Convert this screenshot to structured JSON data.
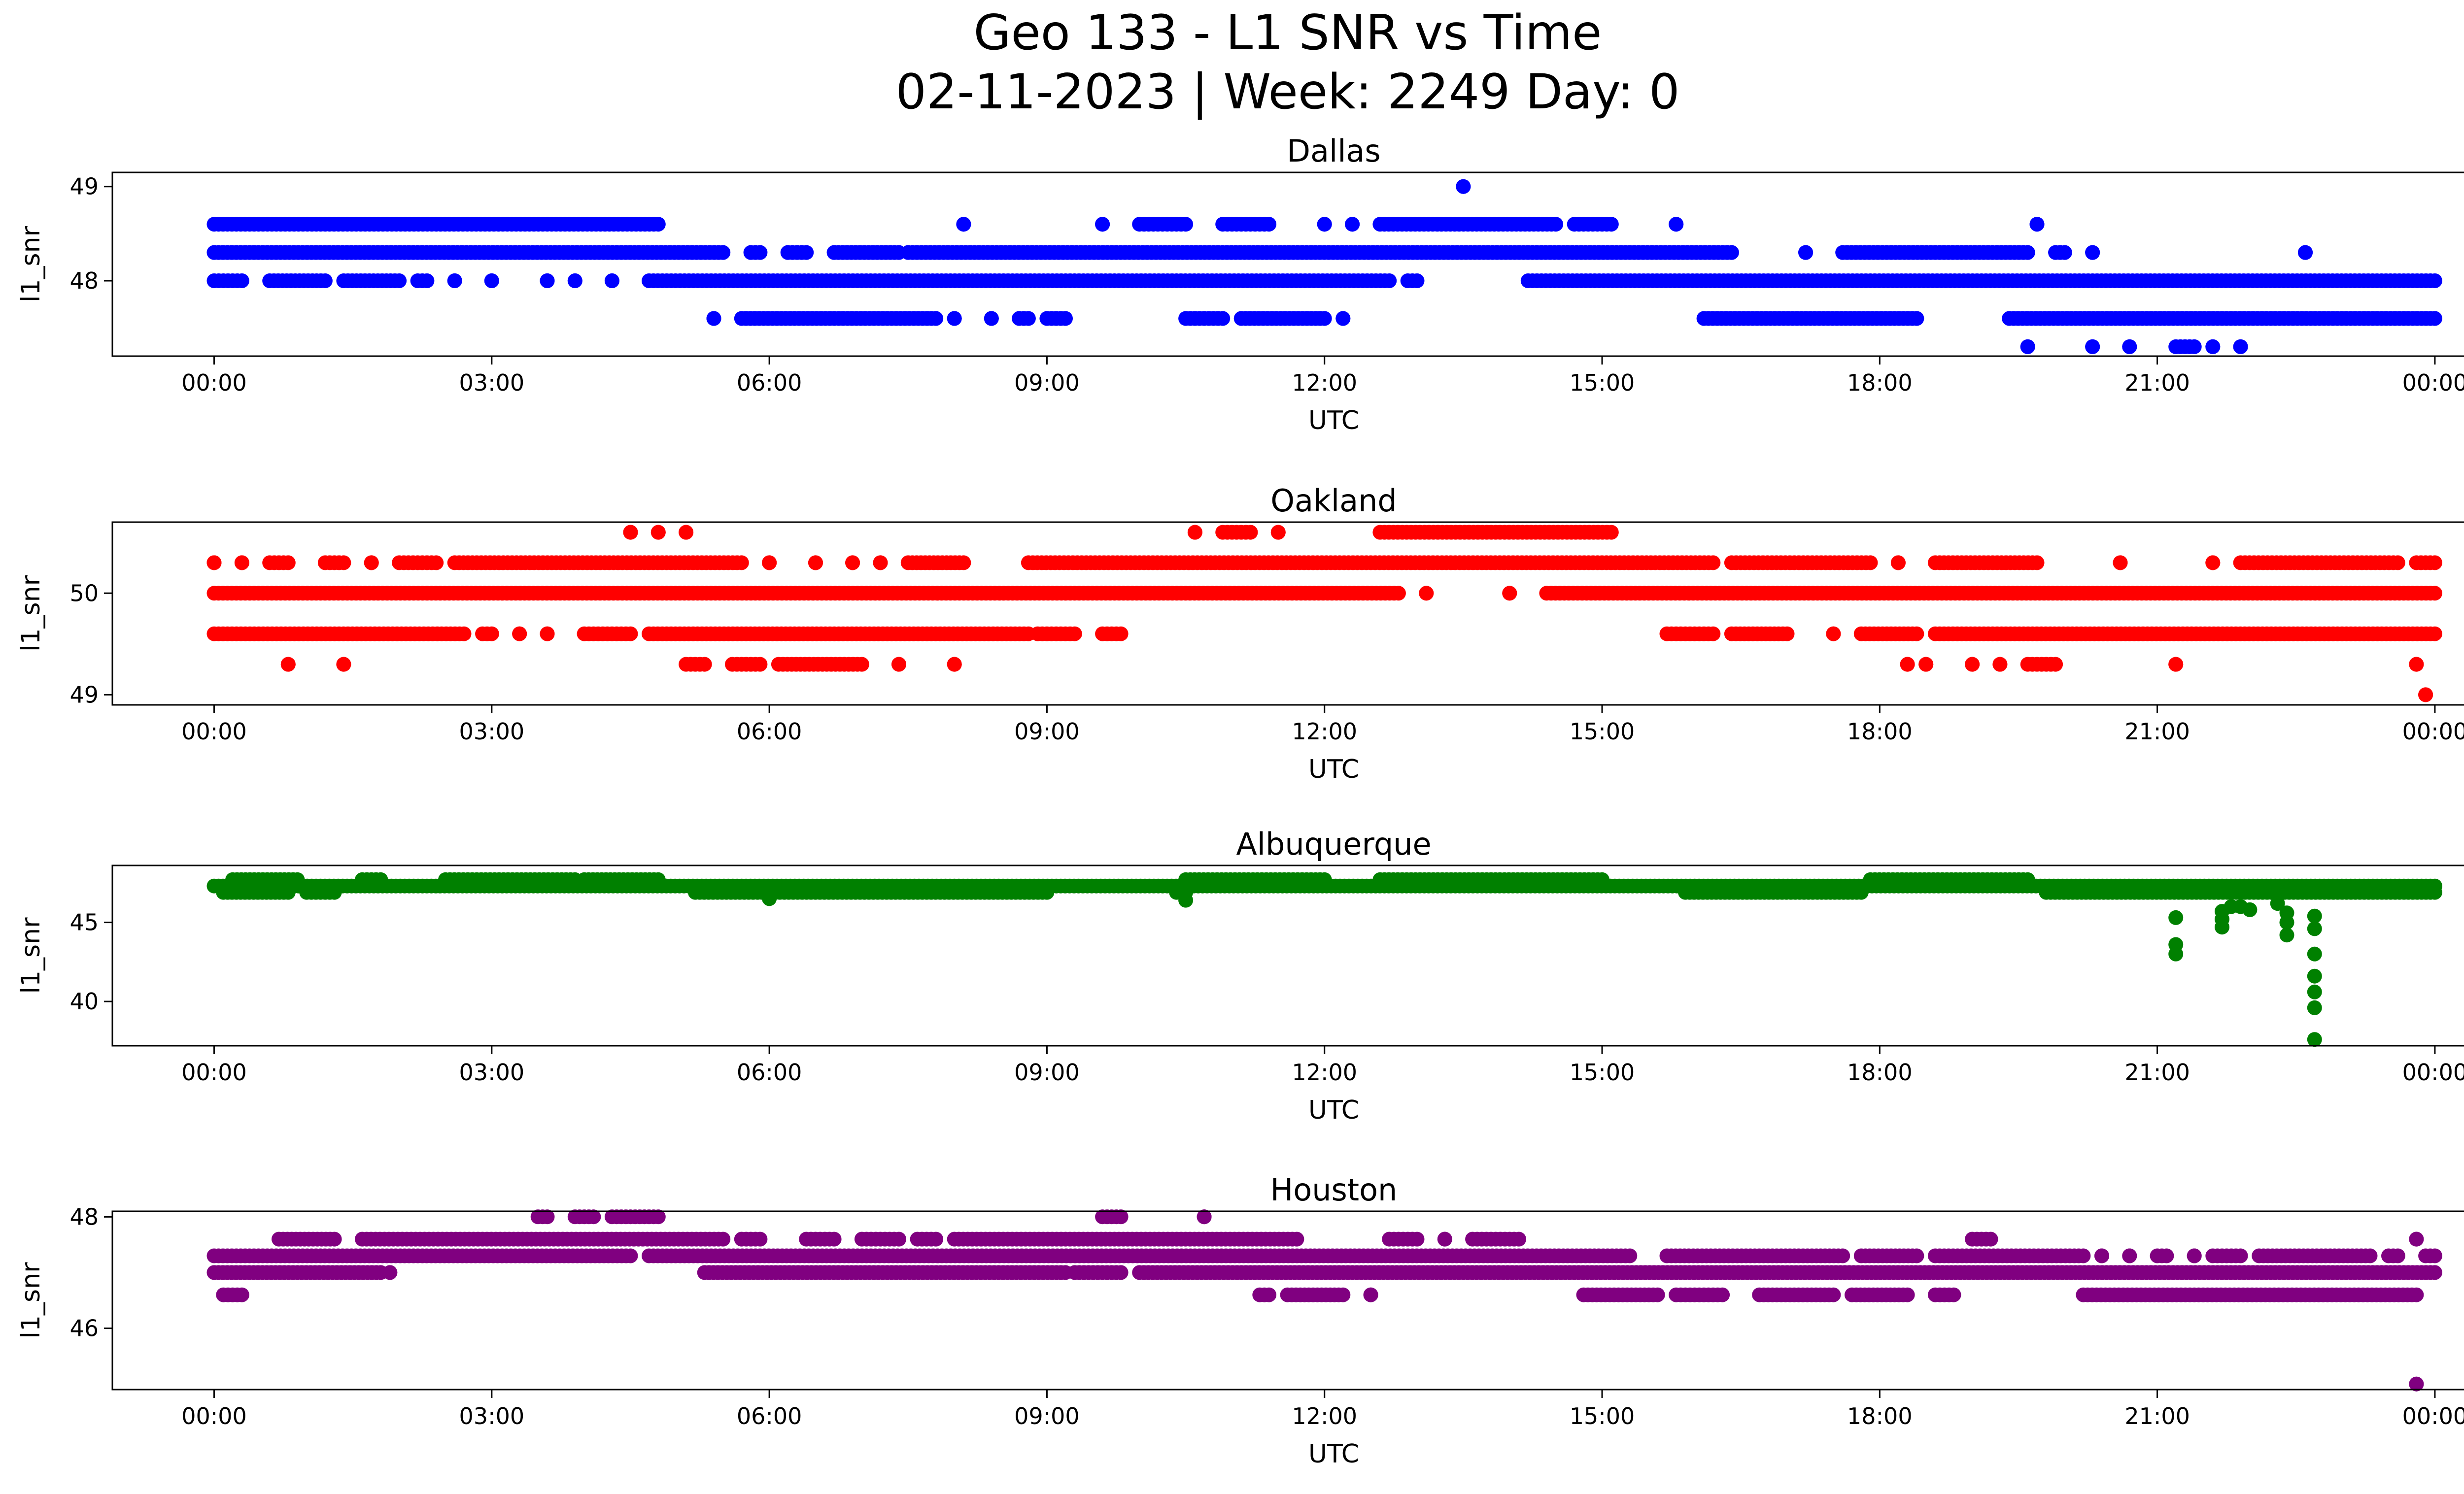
{
  "figure": {
    "title_line1": "Geo 133 - L1 SNR vs Time",
    "title_line2": "02-11-2023 | Week: 2249 Day: 0"
  },
  "chart_data": [
    {
      "type": "scatter",
      "title": "Dallas",
      "xlabel": "UTC",
      "ylabel": "l1_snr",
      "color": "#0000ff",
      "x_ticks": [
        "00:00",
        "03:00",
        "06:00",
        "09:00",
        "12:00",
        "15:00",
        "18:00",
        "21:00",
        "00:00"
      ],
      "x_range_hours": [
        -1.1,
        25.3
      ],
      "ylim": [
        47.2,
        49.15
      ],
      "y_ticks": [
        48,
        49
      ],
      "bands": [
        {
          "y": 48.6,
          "segments": [
            [
              0.0,
              4.8
            ],
            [
              8.1,
              8.1
            ],
            [
              9.6,
              9.6
            ],
            [
              10.0,
              10.5
            ],
            [
              10.9,
              11.4
            ],
            [
              12.0,
              12.0
            ],
            [
              12.3,
              12.3
            ],
            [
              12.6,
              14.5
            ],
            [
              14.7,
              15.1
            ],
            [
              15.8,
              15.8
            ],
            [
              19.7,
              19.7
            ]
          ]
        },
        {
          "y": 48.3,
          "segments": [
            [
              0.0,
              5.5
            ],
            [
              5.8,
              5.9
            ],
            [
              6.2,
              6.4
            ],
            [
              6.7,
              7.4
            ],
            [
              7.5,
              16.4
            ],
            [
              17.2,
              17.2
            ],
            [
              17.6,
              19.6
            ],
            [
              19.9,
              20.0
            ],
            [
              20.3,
              20.3
            ],
            [
              22.6,
              22.6
            ]
          ]
        },
        {
          "y": 48.0,
          "segments": [
            [
              0.0,
              0.3
            ],
            [
              0.6,
              1.2
            ],
            [
              1.4,
              2.0
            ],
            [
              2.2,
              2.3
            ],
            [
              2.6,
              2.6
            ],
            [
              3.0,
              3.0
            ],
            [
              3.6,
              3.6
            ],
            [
              3.9,
              3.9
            ],
            [
              4.3,
              4.3
            ],
            [
              4.7,
              12.7
            ],
            [
              12.9,
              13.0
            ],
            [
              14.2,
              24.0
            ]
          ]
        },
        {
          "y": 47.6,
          "segments": [
            [
              5.4,
              5.4
            ],
            [
              5.7,
              7.8
            ],
            [
              8.0,
              8.0
            ],
            [
              8.4,
              8.4
            ],
            [
              8.7,
              8.8
            ],
            [
              9.0,
              9.2
            ],
            [
              10.5,
              10.9
            ],
            [
              11.1,
              12.0
            ],
            [
              12.2,
              12.2
            ],
            [
              16.1,
              18.4
            ],
            [
              19.4,
              24.0
            ]
          ]
        },
        {
          "y": 47.3,
          "segments": [
            [
              19.6,
              19.6
            ],
            [
              20.3,
              20.3
            ],
            [
              20.7,
              20.7
            ],
            [
              21.2,
              21.4
            ],
            [
              21.6,
              21.6
            ],
            [
              21.9,
              21.9
            ]
          ]
        },
        {
          "y": 49.0,
          "segments": [
            [
              13.5,
              13.5
            ]
          ]
        }
      ]
    },
    {
      "type": "scatter",
      "title": "Oakland",
      "xlabel": "UTC",
      "ylabel": "l1_snr",
      "color": "#ff0000",
      "x_ticks": [
        "00:00",
        "03:00",
        "06:00",
        "09:00",
        "12:00",
        "15:00",
        "18:00",
        "21:00",
        "00:00"
      ],
      "x_range_hours": [
        -1.1,
        25.3
      ],
      "ylim": [
        48.9,
        50.7
      ],
      "y_ticks": [
        49,
        50
      ],
      "bands": [
        {
          "y": 50.6,
          "segments": [
            [
              4.5,
              4.5
            ],
            [
              4.8,
              4.8
            ],
            [
              5.1,
              5.1
            ],
            [
              10.6,
              10.6
            ],
            [
              10.9,
              11.2
            ],
            [
              11.5,
              11.5
            ],
            [
              12.6,
              15.1
            ]
          ]
        },
        {
          "y": 50.3,
          "segments": [
            [
              0.0,
              0.0
            ],
            [
              0.3,
              0.3
            ],
            [
              0.6,
              0.8
            ],
            [
              1.2,
              1.4
            ],
            [
              1.7,
              1.7
            ],
            [
              2.0,
              2.4
            ],
            [
              2.6,
              5.7
            ],
            [
              6.0,
              6.0
            ],
            [
              6.5,
              6.5
            ],
            [
              6.9,
              6.9
            ],
            [
              7.2,
              7.2
            ],
            [
              7.5,
              8.1
            ],
            [
              8.8,
              16.2
            ],
            [
              16.4,
              17.9
            ],
            [
              18.2,
              18.2
            ],
            [
              18.6,
              19.7
            ],
            [
              20.6,
              20.6
            ],
            [
              21.6,
              21.6
            ],
            [
              21.9,
              23.6
            ],
            [
              23.8,
              24.0
            ]
          ]
        },
        {
          "y": 50.0,
          "segments": [
            [
              0.0,
              12.8
            ],
            [
              13.1,
              13.1
            ],
            [
              14.0,
              14.0
            ],
            [
              14.4,
              24.0
            ]
          ]
        },
        {
          "y": 49.6,
          "segments": [
            [
              0.0,
              2.7
            ],
            [
              2.9,
              3.0
            ],
            [
              3.3,
              3.3
            ],
            [
              3.6,
              3.6
            ],
            [
              4.0,
              4.5
            ],
            [
              4.7,
              8.8
            ],
            [
              8.9,
              9.3
            ],
            [
              9.6,
              9.8
            ],
            [
              15.7,
              16.2
            ],
            [
              16.4,
              17.0
            ],
            [
              17.5,
              17.5
            ],
            [
              17.8,
              18.4
            ],
            [
              18.6,
              24.0
            ]
          ]
        },
        {
          "y": 49.3,
          "segments": [
            [
              0.8,
              0.8
            ],
            [
              1.4,
              1.4
            ],
            [
              5.1,
              5.3
            ],
            [
              5.6,
              5.9
            ],
            [
              6.1,
              7.0
            ],
            [
              7.4,
              7.4
            ],
            [
              8.0,
              8.0
            ],
            [
              18.3,
              18.3
            ],
            [
              18.5,
              18.5
            ],
            [
              19.0,
              19.0
            ],
            [
              19.3,
              19.3
            ],
            [
              19.6,
              19.9
            ],
            [
              21.2,
              21.2
            ],
            [
              23.8,
              23.8
            ]
          ]
        },
        {
          "y": 49.0,
          "segments": [
            [
              23.9,
              23.9
            ]
          ]
        }
      ]
    },
    {
      "type": "scatter",
      "title": "Albuquerque",
      "xlabel": "UTC",
      "ylabel": "l1_snr",
      "color": "#008000",
      "x_ticks": [
        "00:00",
        "03:00",
        "06:00",
        "09:00",
        "12:00",
        "15:00",
        "18:00",
        "21:00",
        "00:00"
      ],
      "x_range_hours": [
        -1.1,
        25.3
      ],
      "ylim": [
        37.2,
        48.6
      ],
      "y_ticks": [
        40,
        45
      ],
      "bands": [
        {
          "y": 47.3,
          "segments": [
            [
              0.0,
              24.0
            ]
          ]
        },
        {
          "y": 47.7,
          "segments": [
            [
              0.2,
              0.9
            ],
            [
              1.6,
              1.8
            ],
            [
              2.5,
              3.9
            ],
            [
              4.0,
              4.8
            ],
            [
              10.5,
              12.0
            ],
            [
              12.6,
              15.0
            ],
            [
              17.9,
              19.6
            ]
          ]
        },
        {
          "y": 46.9,
          "segments": [
            [
              0.1,
              0.8
            ],
            [
              1.0,
              1.3
            ],
            [
              5.2,
              9.0
            ],
            [
              10.4,
              10.5
            ],
            [
              15.9,
              17.8
            ],
            [
              19.8,
              24.0
            ]
          ]
        }
      ],
      "points": [
        [
          21.2,
          45.3
        ],
        [
          21.2,
          43.6
        ],
        [
          21.2,
          43.0
        ],
        [
          21.7,
          45.7
        ],
        [
          21.7,
          45.2
        ],
        [
          21.7,
          44.7
        ],
        [
          21.8,
          46.0
        ],
        [
          21.9,
          46.0
        ],
        [
          22.0,
          45.8
        ],
        [
          22.3,
          46.2
        ],
        [
          22.4,
          45.6
        ],
        [
          22.4,
          45.0
        ],
        [
          22.4,
          44.2
        ],
        [
          22.7,
          45.4
        ],
        [
          22.7,
          44.6
        ],
        [
          22.7,
          43.0
        ],
        [
          22.7,
          41.6
        ],
        [
          22.7,
          40.6
        ],
        [
          22.7,
          39.6
        ],
        [
          22.7,
          37.6
        ],
        [
          10.5,
          46.4
        ],
        [
          6.0,
          46.5
        ]
      ]
    },
    {
      "type": "scatter",
      "title": "Houston",
      "xlabel": "UTC",
      "ylabel": "l1_snr",
      "color": "#800080",
      "x_ticks": [
        "00:00",
        "03:00",
        "06:00",
        "09:00",
        "12:00",
        "15:00",
        "18:00",
        "21:00",
        "00:00"
      ],
      "x_range_hours": [
        -1.1,
        25.3
      ],
      "ylim": [
        44.9,
        48.1
      ],
      "y_ticks": [
        46,
        48
      ],
      "bands": [
        {
          "y": 48.0,
          "segments": [
            [
              3.5,
              3.6
            ],
            [
              3.9,
              4.1
            ],
            [
              4.3,
              4.8
            ],
            [
              9.6,
              9.8
            ],
            [
              10.7,
              10.7
            ]
          ]
        },
        {
          "y": 47.6,
          "segments": [
            [
              0.7,
              1.3
            ],
            [
              1.6,
              5.5
            ],
            [
              5.7,
              5.9
            ],
            [
              6.4,
              6.7
            ],
            [
              7.0,
              7.4
            ],
            [
              7.6,
              7.8
            ],
            [
              8.0,
              11.7
            ],
            [
              12.7,
              13.0
            ],
            [
              13.3,
              13.3
            ],
            [
              13.6,
              14.1
            ],
            [
              19.0,
              19.2
            ],
            [
              23.8,
              23.8
            ]
          ]
        },
        {
          "y": 47.3,
          "segments": [
            [
              0.0,
              4.5
            ],
            [
              4.7,
              15.3
            ],
            [
              15.7,
              17.6
            ],
            [
              17.8,
              18.4
            ],
            [
              18.6,
              20.2
            ],
            [
              20.4,
              20.4
            ],
            [
              20.7,
              20.7
            ],
            [
              21.0,
              21.1
            ],
            [
              21.4,
              21.4
            ],
            [
              21.6,
              21.9
            ],
            [
              22.1,
              23.3
            ],
            [
              23.5,
              23.6
            ],
            [
              23.9,
              24.0
            ]
          ]
        },
        {
          "y": 47.0,
          "segments": [
            [
              0.0,
              1.8
            ],
            [
              1.9,
              1.9
            ],
            [
              5.3,
              9.2
            ],
            [
              9.3,
              9.8
            ],
            [
              10.0,
              24.0
            ]
          ]
        },
        {
          "y": 46.6,
          "segments": [
            [
              0.1,
              0.3
            ],
            [
              11.3,
              11.4
            ],
            [
              11.6,
              12.2
            ],
            [
              12.5,
              12.5
            ],
            [
              14.8,
              15.6
            ],
            [
              15.8,
              16.3
            ],
            [
              16.7,
              17.5
            ],
            [
              17.7,
              18.3
            ],
            [
              18.6,
              18.8
            ],
            [
              20.2,
              23.8
            ]
          ]
        },
        {
          "y": 45.0,
          "segments": [
            [
              23.8,
              23.8
            ]
          ]
        }
      ]
    }
  ]
}
